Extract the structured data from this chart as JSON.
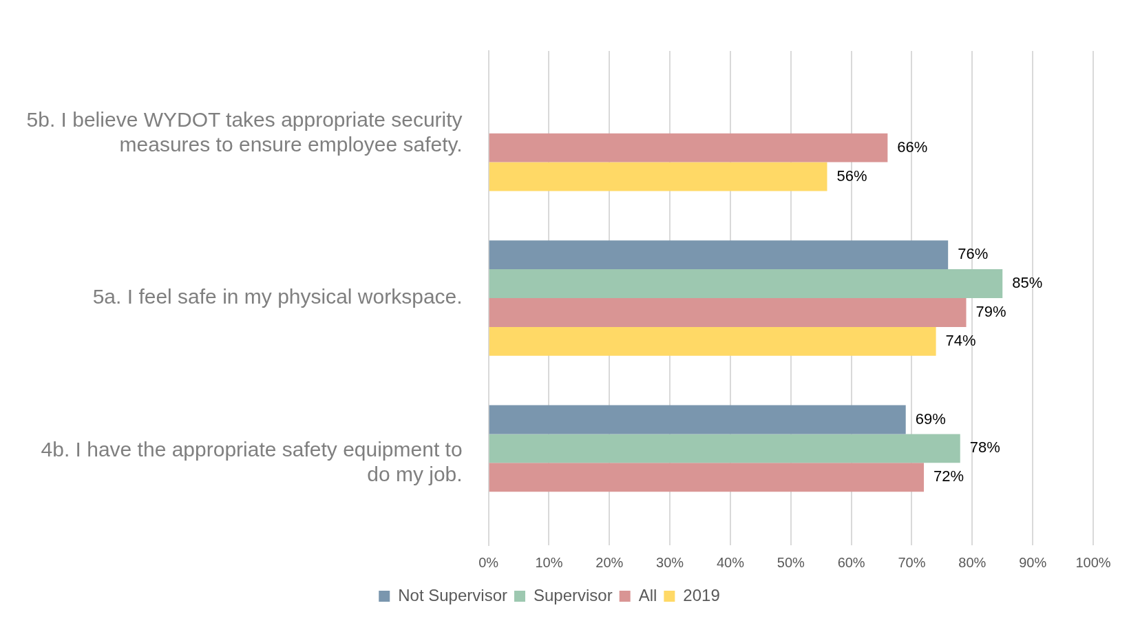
{
  "chart_data": {
    "type": "bar",
    "orientation": "horizontal",
    "categories": [
      "5b. I believe WYDOT takes appropriate security measures to ensure employee safety.",
      "5a. I feel safe in my physical workspace.",
      "4b. I have the appropriate safety equipment to do my job."
    ],
    "series": [
      {
        "name": "Not Supervisor",
        "color": "#7a96ae",
        "values": [
          null,
          76,
          69
        ],
        "value_labels": [
          null,
          "76%",
          "69%"
        ]
      },
      {
        "name": "Supervisor",
        "color": "#9dc8b0",
        "values": [
          null,
          85,
          78
        ],
        "value_labels": [
          null,
          "85%",
          "78%"
        ]
      },
      {
        "name": "All",
        "color": "#d99594",
        "values": [
          66,
          79,
          72
        ],
        "value_labels": [
          "66%",
          "79%",
          "72%"
        ]
      },
      {
        "name": "2019",
        "color": "#ffd966",
        "values": [
          56,
          74,
          null
        ],
        "value_labels": [
          "56%",
          "74%",
          null
        ]
      }
    ],
    "xlim": [
      0,
      100
    ],
    "xticks": [
      {
        "value": 0,
        "label": "0%"
      },
      {
        "value": 10,
        "label": "10%"
      },
      {
        "value": 20,
        "label": "20%"
      },
      {
        "value": 30,
        "label": "30%"
      },
      {
        "value": 40,
        "label": "40%"
      },
      {
        "value": 50,
        "label": "50%"
      },
      {
        "value": 60,
        "label": "60%"
      },
      {
        "value": 70,
        "label": "70%"
      },
      {
        "value": 80,
        "label": "80%"
      },
      {
        "value": 90,
        "label": "90%"
      },
      {
        "value": 100,
        "label": "100%"
      }
    ],
    "grid": "x",
    "legend": "bottom"
  }
}
